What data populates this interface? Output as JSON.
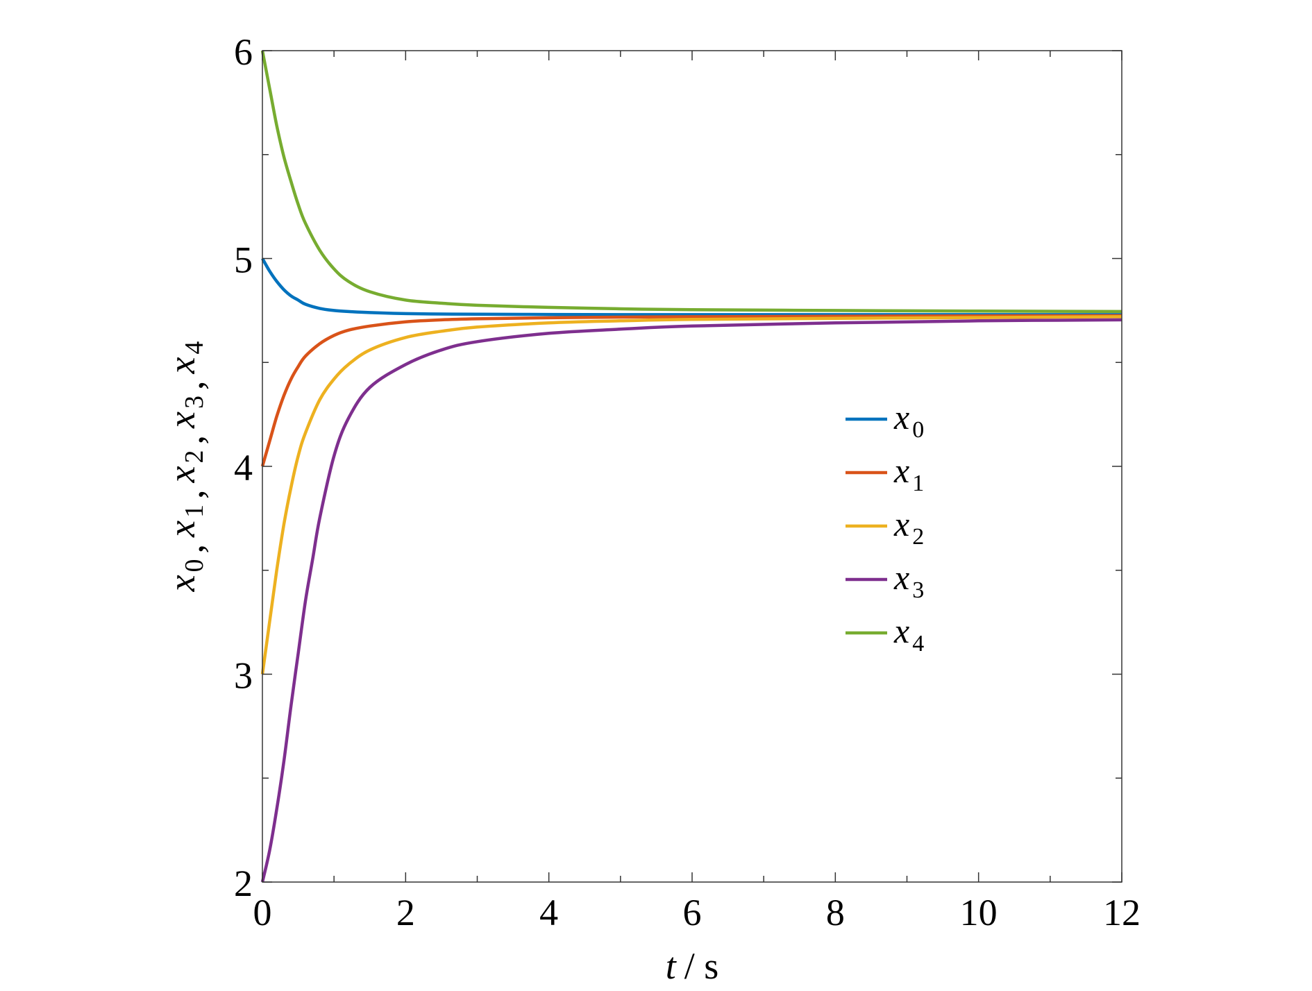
{
  "chart_data": {
    "type": "line",
    "title": "",
    "xlabel_var": "t",
    "xlabel_unit": "/ s",
    "ylabel_parts": [
      {
        "var": "x",
        "sub": "0"
      },
      {
        "var": "x",
        "sub": "1"
      },
      {
        "var": "x",
        "sub": "2"
      },
      {
        "var": "x",
        "sub": "3"
      },
      {
        "var": "x",
        "sub": "4"
      }
    ],
    "ylabel_separator": ",",
    "xlim": [
      0,
      12
    ],
    "ylim": [
      2,
      6
    ],
    "x_ticks": [
      0,
      2,
      4,
      6,
      8,
      10,
      12
    ],
    "x_minor_ticks": [
      1,
      3,
      5,
      7,
      9,
      11
    ],
    "y_ticks": [
      2,
      3,
      4,
      5,
      6
    ],
    "y_minor_ticks": [
      2.5,
      3.5,
      4.5,
      5.5
    ],
    "grid": false,
    "legend_position": "middle-right",
    "series": [
      {
        "name_var": "x",
        "name_sub": "0",
        "color": "#0072BD",
        "x": [
          0,
          0.1,
          0.2,
          0.3,
          0.4,
          0.5,
          0.6,
          0.8,
          1,
          1.2,
          1.5,
          2,
          2.5,
          3,
          4,
          5,
          6,
          8,
          10,
          12
        ],
        "y": [
          5.0,
          4.94,
          4.89,
          4.85,
          4.82,
          4.8,
          4.78,
          4.76,
          4.75,
          4.745,
          4.74,
          4.735,
          4.733,
          4.732,
          4.731,
          4.73,
          4.73,
          4.73,
          4.73,
          4.73
        ]
      },
      {
        "name_var": "x",
        "name_sub": "1",
        "color": "#D95319",
        "x": [
          0,
          0.1,
          0.2,
          0.3,
          0.4,
          0.5,
          0.6,
          0.8,
          1,
          1.2,
          1.5,
          2,
          2.5,
          3,
          4,
          5,
          6,
          8,
          10,
          12
        ],
        "y": [
          4.0,
          4.12,
          4.24,
          4.34,
          4.42,
          4.48,
          4.53,
          4.59,
          4.63,
          4.655,
          4.675,
          4.695,
          4.705,
          4.71,
          4.715,
          4.718,
          4.72,
          4.722,
          4.724,
          4.725
        ]
      },
      {
        "name_var": "x",
        "name_sub": "2",
        "color": "#EDB120",
        "x": [
          0,
          0.1,
          0.2,
          0.3,
          0.4,
          0.5,
          0.6,
          0.8,
          1,
          1.2,
          1.5,
          2,
          2.5,
          3,
          4,
          5,
          6,
          8,
          10,
          12
        ],
        "y": [
          3.0,
          3.25,
          3.5,
          3.72,
          3.9,
          4.05,
          4.16,
          4.32,
          4.42,
          4.49,
          4.56,
          4.62,
          4.65,
          4.67,
          4.69,
          4.7,
          4.707,
          4.712,
          4.716,
          4.72
        ]
      },
      {
        "name_var": "x",
        "name_sub": "3",
        "color": "#7E2F8E",
        "x": [
          0,
          0.1,
          0.2,
          0.3,
          0.4,
          0.5,
          0.6,
          0.7,
          0.8,
          1,
          1.2,
          1.5,
          2,
          2.5,
          3,
          4,
          5,
          6,
          8,
          10,
          12
        ],
        "y": [
          2.0,
          2.15,
          2.35,
          2.58,
          2.85,
          3.1,
          3.35,
          3.55,
          3.75,
          4.05,
          4.23,
          4.38,
          4.49,
          4.56,
          4.6,
          4.64,
          4.66,
          4.675,
          4.69,
          4.7,
          4.705
        ]
      },
      {
        "name_var": "x",
        "name_sub": "4",
        "color": "#77AC30",
        "x": [
          0,
          0.1,
          0.2,
          0.3,
          0.4,
          0.5,
          0.6,
          0.8,
          1,
          1.2,
          1.5,
          2,
          2.5,
          3,
          4,
          5,
          6,
          8,
          10,
          12
        ],
        "y": [
          6.0,
          5.82,
          5.64,
          5.49,
          5.37,
          5.26,
          5.17,
          5.04,
          4.95,
          4.89,
          4.84,
          4.8,
          4.785,
          4.775,
          4.765,
          4.758,
          4.754,
          4.75,
          4.747,
          4.745
        ]
      }
    ]
  }
}
